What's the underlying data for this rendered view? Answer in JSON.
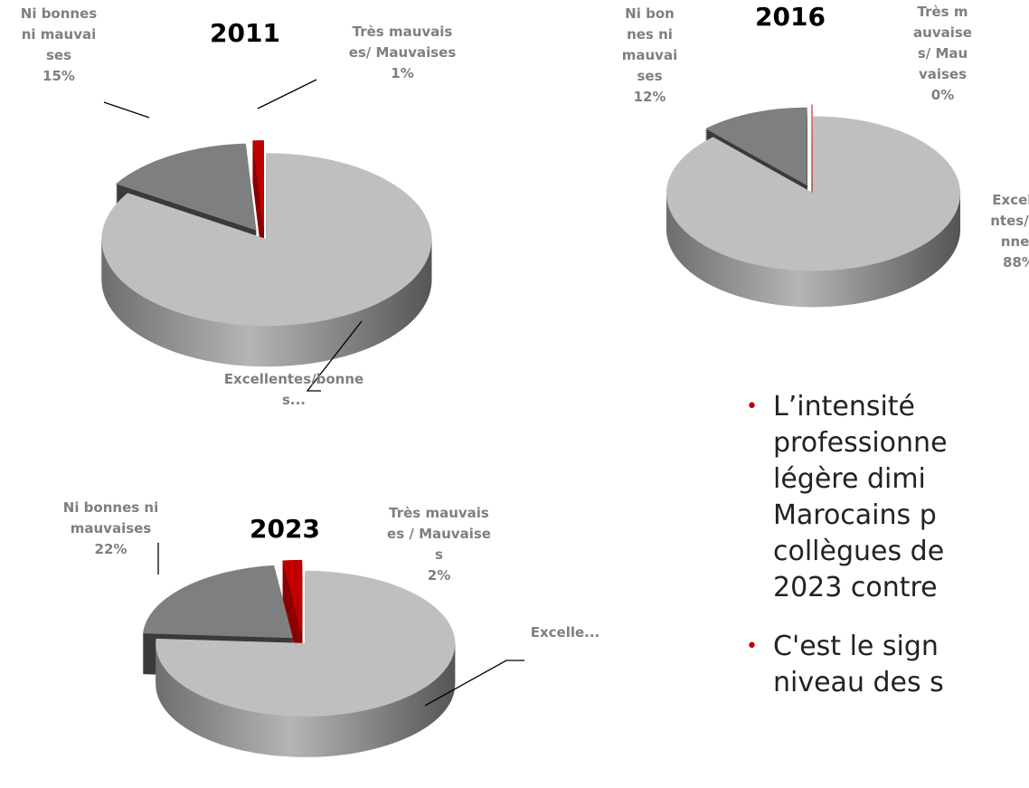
{
  "chart_data": [
    {
      "type": "pie3d",
      "title": "2011",
      "categories": [
        "Excellentes/bonnes...",
        "Ni bonnes ni mauvaises",
        "Très mauvaises/ Mauvaises"
      ],
      "values": [
        84,
        15,
        1
      ],
      "value_labels": [
        null,
        "15%",
        "1%"
      ],
      "colors": [
        "#bfbfbf",
        "#7f7f7f",
        "#c00000"
      ]
    },
    {
      "type": "pie3d",
      "title": "2016",
      "categories": [
        "Excellentes/bonnes",
        "Ni bonnes ni mauvaises",
        "Très mauvaises/ Mauvaises"
      ],
      "values": [
        88,
        12,
        0
      ],
      "value_labels": [
        "88%",
        "12%",
        "0%"
      ],
      "colors": [
        "#bfbfbf",
        "#7f7f7f",
        "#c00000"
      ]
    },
    {
      "type": "pie3d",
      "title": "2023",
      "categories": [
        "Excelle...",
        "Ni bonnes ni mauvaises",
        "Très mauvaises / Mauvaises"
      ],
      "values": [
        76,
        22,
        2
      ],
      "value_labels": [
        null,
        "22%",
        "2%"
      ],
      "colors": [
        "#bfbfbf",
        "#7f7f7f",
        "#c00000"
      ]
    }
  ],
  "text": {
    "bullets": [
      [
        "L’intensité",
        "professionne",
        "légère dimi",
        "Marocains p",
        "collègues de",
        "2023 contre"
      ],
      [
        "C'est le sign",
        "niveau des s"
      ]
    ]
  }
}
